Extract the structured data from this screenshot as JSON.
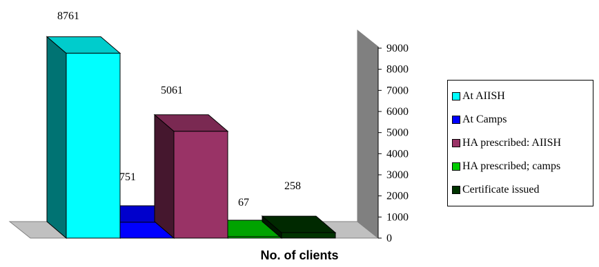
{
  "chart_data": {
    "type": "bar",
    "categories": [
      "At AIISH",
      "At Camps",
      "HA prescribed: AIISH",
      "HA prescribed; camps",
      "Certificate issued"
    ],
    "values": [
      8761,
      751,
      5061,
      67,
      258
    ],
    "data_labels": [
      "8761",
      "751",
      "5061",
      "67",
      "258"
    ],
    "colors": [
      "#00FFFF",
      "#0000FF",
      "#993366",
      "#00CC00",
      "#003300"
    ],
    "xlabel": "No. of clients",
    "ylim": [
      0,
      9000
    ],
    "y_ticks": [
      "0",
      "1000",
      "2000",
      "3000",
      "4000",
      "5000",
      "6000",
      "7000",
      "8000",
      "9000"
    ],
    "legend_position": "right",
    "three_d": true
  }
}
